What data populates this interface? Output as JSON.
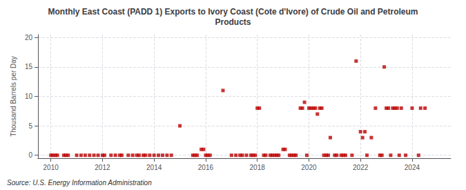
{
  "chart_data": {
    "type": "scatter",
    "title": "Monthly East Coast (PADD 1) Exports to Ivory Coast (Cote d'Ivore) of Crude Oil and Petroleum\nProducts",
    "ylabel": "Thousand Barrels per Day",
    "annotations": [
      "Source: U.S. Energy Information Administration"
    ],
    "color": "#bb0000",
    "marker": "square",
    "grid": true,
    "xlim": [
      2009.5,
      2025.5
    ],
    "xticks": [
      2010,
      2012,
      2014,
      2016,
      2018,
      2020,
      2022,
      2024
    ],
    "ylim": [
      -0.5,
      20.5
    ],
    "yticks": [
      0,
      5,
      10,
      15,
      20
    ],
    "x": [
      2010.0,
      2010.08,
      2010.17,
      2010.25,
      2010.5,
      2010.58,
      2010.67,
      2011.0,
      2011.17,
      2011.33,
      2011.5,
      2011.67,
      2011.83,
      2012.0,
      2012.08,
      2012.33,
      2012.5,
      2012.67,
      2012.75,
      2013.0,
      2013.17,
      2013.33,
      2013.42,
      2013.58,
      2013.67,
      2013.83,
      2014.0,
      2014.17,
      2014.33,
      2014.5,
      2014.67,
      2015.0,
      2015.5,
      2015.58,
      2015.67,
      2015.83,
      2015.92,
      2016.0,
      2016.08,
      2016.17,
      2016.67,
      2017.0,
      2017.17,
      2017.33,
      2017.42,
      2017.58,
      2017.75,
      2017.83,
      2017.92,
      2018.0,
      2018.08,
      2018.25,
      2018.33,
      2018.5,
      2018.58,
      2018.67,
      2018.75,
      2018.83,
      2019.0,
      2019.08,
      2019.25,
      2019.33,
      2019.42,
      2019.5,
      2019.67,
      2019.75,
      2019.83,
      2019.92,
      2020.0,
      2020.08,
      2020.17,
      2020.25,
      2020.33,
      2020.42,
      2020.5,
      2020.58,
      2020.67,
      2020.75,
      2020.83,
      2021.0,
      2021.08,
      2021.25,
      2021.33,
      2021.42,
      2021.67,
      2021.83,
      2022.0,
      2022.08,
      2022.17,
      2022.25,
      2022.42,
      2022.58,
      2022.75,
      2022.83,
      2022.92,
      2023.0,
      2023.08,
      2023.17,
      2023.25,
      2023.33,
      2023.42,
      2023.5,
      2023.58,
      2023.75,
      2024.0,
      2024.25,
      2024.33,
      2024.5
    ],
    "values": [
      0,
      0,
      0,
      0,
      0,
      0,
      0,
      0,
      0,
      0,
      0,
      0,
      0,
      0,
      0,
      0,
      0,
      0,
      0,
      0,
      0,
      0,
      0,
      0,
      0,
      0,
      0,
      0,
      0,
      0,
      0,
      5,
      0,
      0,
      0,
      1,
      1,
      0,
      0,
      0,
      11,
      0,
      0,
      0,
      0,
      0,
      0,
      0,
      0,
      8,
      8,
      0,
      0,
      0,
      0,
      0,
      0,
      0,
      1,
      1,
      0,
      0,
      0,
      0,
      8,
      8,
      9,
      0,
      8,
      8,
      8,
      8,
      7,
      8,
      8,
      0,
      0,
      0,
      3,
      0,
      0,
      0,
      0,
      0,
      0,
      16,
      4,
      3,
      4,
      0,
      3,
      8,
      0,
      0,
      15,
      8,
      8,
      0,
      8,
      8,
      8,
      0,
      8,
      0,
      8,
      0,
      8,
      8
    ]
  }
}
